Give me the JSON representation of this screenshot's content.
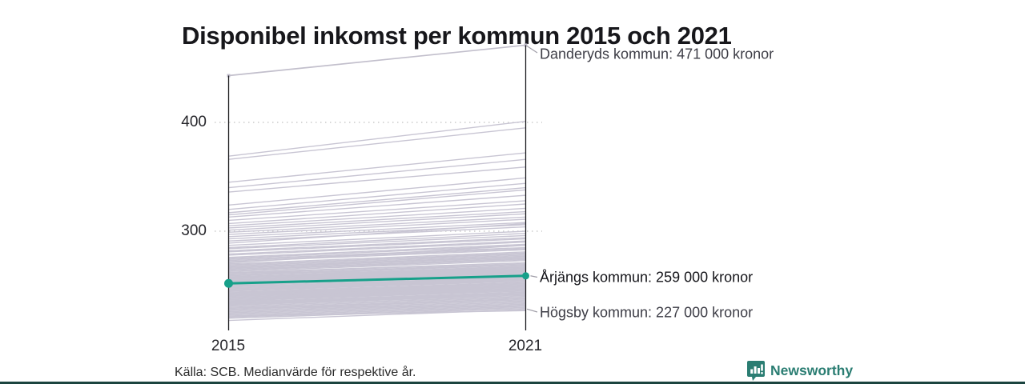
{
  "title": "Disponibel inkomst per kommun 2015 och 2021",
  "source_note": "Källa: SCB. Medianvärde för respektive år.",
  "branding": {
    "name": "Newsworthy",
    "icon": "newsworthy-logo-icon",
    "color": "#2a7d72"
  },
  "chart_data": {
    "type": "line",
    "subtype": "slope-chart",
    "x": [
      2015,
      2021
    ],
    "x_tick_labels": [
      "2015",
      "2021"
    ],
    "unit": "tusen kronor (thousands of kronor)",
    "y_axis": {
      "tick_labels": [
        "400",
        "300"
      ],
      "gridline_values": [
        400,
        300
      ],
      "implied_range": [
        218,
        471
      ],
      "grid_style": "dotted"
    },
    "highlight_series": {
      "name": "Årjängs kommun",
      "values": [
        252,
        259
      ],
      "label": "Årjängs kommun: 259 000 kronor",
      "color": "#17a08a"
    },
    "annotated_series": [
      {
        "name": "Danderyds kommun",
        "values": [
          443,
          471
        ],
        "label": "Danderyds kommun: 471 000 kronor"
      },
      {
        "name": "Högsby kommun",
        "values": [
          222,
          227
        ],
        "label": "Högsby kommun: 227 000 kronor"
      }
    ],
    "colors": {
      "background_line": "#c8c5d3",
      "axis": "#1c1c1f",
      "grid": "#cccccc",
      "leader": "#a09ea8",
      "highlight": "#17a08a"
    },
    "background_series_pairs": [
      [
        369,
        401
      ],
      [
        366,
        395
      ],
      [
        345,
        372
      ],
      [
        340,
        366
      ],
      [
        336,
        359
      ],
      [
        324,
        349
      ],
      [
        320,
        344
      ],
      [
        317,
        340
      ],
      [
        315,
        338
      ],
      [
        313,
        333
      ],
      [
        310,
        328
      ],
      [
        307,
        325
      ],
      [
        305,
        321
      ],
      [
        303,
        318
      ],
      [
        301,
        316
      ],
      [
        299,
        313
      ],
      [
        297,
        311
      ],
      [
        295,
        308
      ],
      [
        293,
        306
      ],
      [
        291,
        304
      ],
      [
        289,
        307
      ],
      [
        287,
        300
      ],
      [
        285,
        298
      ],
      [
        284,
        296
      ],
      [
        282,
        294
      ],
      [
        281,
        293
      ],
      [
        279,
        291
      ],
      [
        278,
        290
      ],
      [
        276,
        288
      ],
      [
        275,
        287
      ],
      [
        274,
        285
      ],
      [
        273,
        284
      ],
      [
        272,
        283
      ],
      [
        271,
        287
      ],
      [
        270,
        281
      ],
      [
        269,
        280
      ],
      [
        269,
        279
      ],
      [
        268,
        278
      ],
      [
        267,
        277
      ],
      [
        266,
        277
      ],
      [
        266,
        276
      ],
      [
        265,
        275
      ],
      [
        264,
        275
      ],
      [
        264,
        274
      ],
      [
        263,
        273
      ],
      [
        262,
        263
      ],
      [
        262,
        271
      ],
      [
        261,
        271
      ],
      [
        260,
        270
      ],
      [
        260,
        269
      ],
      [
        259,
        269
      ],
      [
        258,
        268
      ],
      [
        258,
        267
      ],
      [
        257,
        267
      ],
      [
        257,
        266
      ],
      [
        256,
        266
      ],
      [
        256,
        265
      ],
      [
        255,
        265
      ],
      [
        255,
        264
      ],
      [
        254,
        264
      ],
      [
        254,
        263
      ],
      [
        253,
        263
      ],
      [
        253,
        262
      ],
      [
        252,
        262
      ],
      [
        252,
        261
      ],
      [
        251,
        261
      ],
      [
        251,
        260
      ],
      [
        250,
        260
      ],
      [
        250,
        259
      ],
      [
        249,
        264
      ],
      [
        249,
        258
      ],
      [
        248,
        258
      ],
      [
        248,
        257
      ],
      [
        247,
        257
      ],
      [
        247,
        256
      ],
      [
        246,
        256
      ],
      [
        246,
        255
      ],
      [
        245,
        255
      ],
      [
        245,
        254
      ],
      [
        244,
        246
      ],
      [
        244,
        253
      ],
      [
        243,
        253
      ],
      [
        243,
        252
      ],
      [
        242,
        252
      ],
      [
        242,
        251
      ],
      [
        241,
        251
      ],
      [
        241,
        250
      ],
      [
        240,
        250
      ],
      [
        240,
        249
      ],
      [
        239,
        249
      ],
      [
        239,
        248
      ],
      [
        238,
        248
      ],
      [
        238,
        247
      ],
      [
        237,
        247
      ],
      [
        237,
        246
      ],
      [
        236,
        246
      ],
      [
        236,
        245
      ],
      [
        235,
        250
      ],
      [
        235,
        244
      ],
      [
        234,
        244
      ],
      [
        234,
        243
      ],
      [
        233,
        243
      ],
      [
        233,
        242
      ],
      [
        232,
        242
      ],
      [
        232,
        241
      ],
      [
        231,
        240
      ],
      [
        230,
        231
      ],
      [
        230,
        239
      ],
      [
        229,
        238
      ],
      [
        228,
        238
      ],
      [
        228,
        237
      ],
      [
        227,
        236
      ],
      [
        226,
        235
      ],
      [
        225,
        234
      ],
      [
        224,
        233
      ],
      [
        223,
        232
      ],
      [
        222,
        231
      ],
      [
        221,
        230
      ],
      [
        220,
        229
      ],
      [
        218,
        228
      ]
    ]
  }
}
